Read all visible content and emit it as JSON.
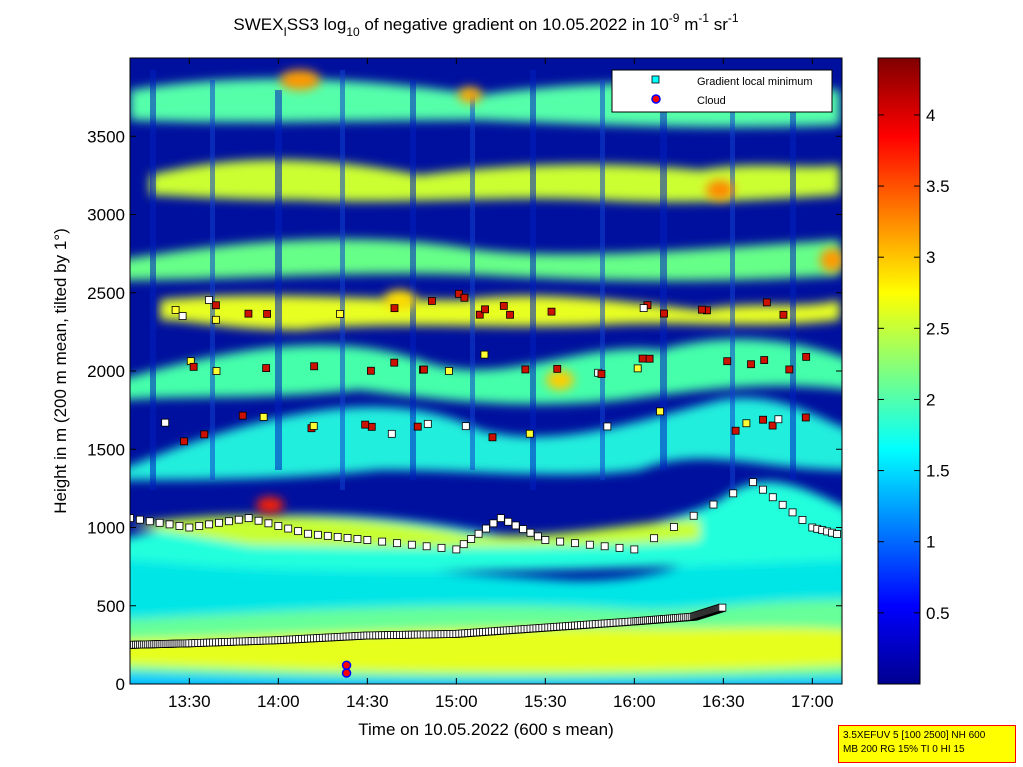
{
  "chart_data": {
    "type": "heatmap",
    "title": {
      "prefix": "SWEX",
      "prefix_sub": "I",
      "main": "SS3 log",
      "main_sub": "10",
      "rest": " of negative gradient on 10.05.2022 in 10",
      "exp1": "-9",
      "unit1": " m",
      "exp2": "-1",
      "unit2": " sr",
      "exp3": "-1"
    },
    "xlabel": "Time on 10.05.2022 (600 s mean)",
    "ylabel": "Height in m (200 m mean, tilted by 1°)",
    "x_range": [
      "13:10",
      "17:10"
    ],
    "y_range": [
      0,
      4000
    ],
    "x_ticks": [
      "13:30",
      "14:00",
      "14:30",
      "15:00",
      "15:30",
      "16:00",
      "16:30",
      "17:00"
    ],
    "y_ticks": [
      "0",
      "500",
      "1000",
      "1500",
      "2000",
      "2500",
      "3000",
      "3500"
    ],
    "colorbar": {
      "range": [
        0,
        4.4
      ],
      "ticks": [
        "0.5",
        "1",
        "1.5",
        "2",
        "2.5",
        "3",
        "3.5",
        "4"
      ],
      "colormap": "jet"
    },
    "legend": {
      "placement": "top-right",
      "entries": [
        {
          "name": "Gradient local minimum",
          "marker": "square",
          "color": "#00ffff"
        },
        {
          "name": "Cloud",
          "marker": "circle",
          "color": "#ff0000",
          "edge": "#0000ff"
        }
      ]
    },
    "series": [
      {
        "name": "Gradient local minimum",
        "role": "lower boundary layer",
        "x": [
          "13:10",
          "13:30",
          "14:00",
          "14:30",
          "15:00",
          "15:30",
          "16:00",
          "16:20",
          "16:30"
        ],
        "y": [
          250,
          260,
          280,
          310,
          320,
          360,
          400,
          430,
          490
        ]
      },
      {
        "name": "Gradient local minimum",
        "role": "layer near 1 km",
        "x": [
          "13:10",
          "13:30",
          "13:50",
          "14:10",
          "14:30",
          "15:00",
          "15:15",
          "15:30",
          "16:00",
          "16:40",
          "17:00",
          "17:10"
        ],
        "y": [
          1060,
          1000,
          1060,
          960,
          920,
          860,
          1060,
          920,
          860,
          1290,
          1000,
          950
        ]
      },
      {
        "name": "Cloud",
        "x": [
          "14:23",
          "14:23"
        ],
        "y": [
          70,
          120
        ]
      }
    ]
  },
  "info_box": {
    "line1": "3.5XEFUV 5 [100 2500] NH 600",
    "line2": "MB 200 RG 15% TI 0 HI 15"
  }
}
